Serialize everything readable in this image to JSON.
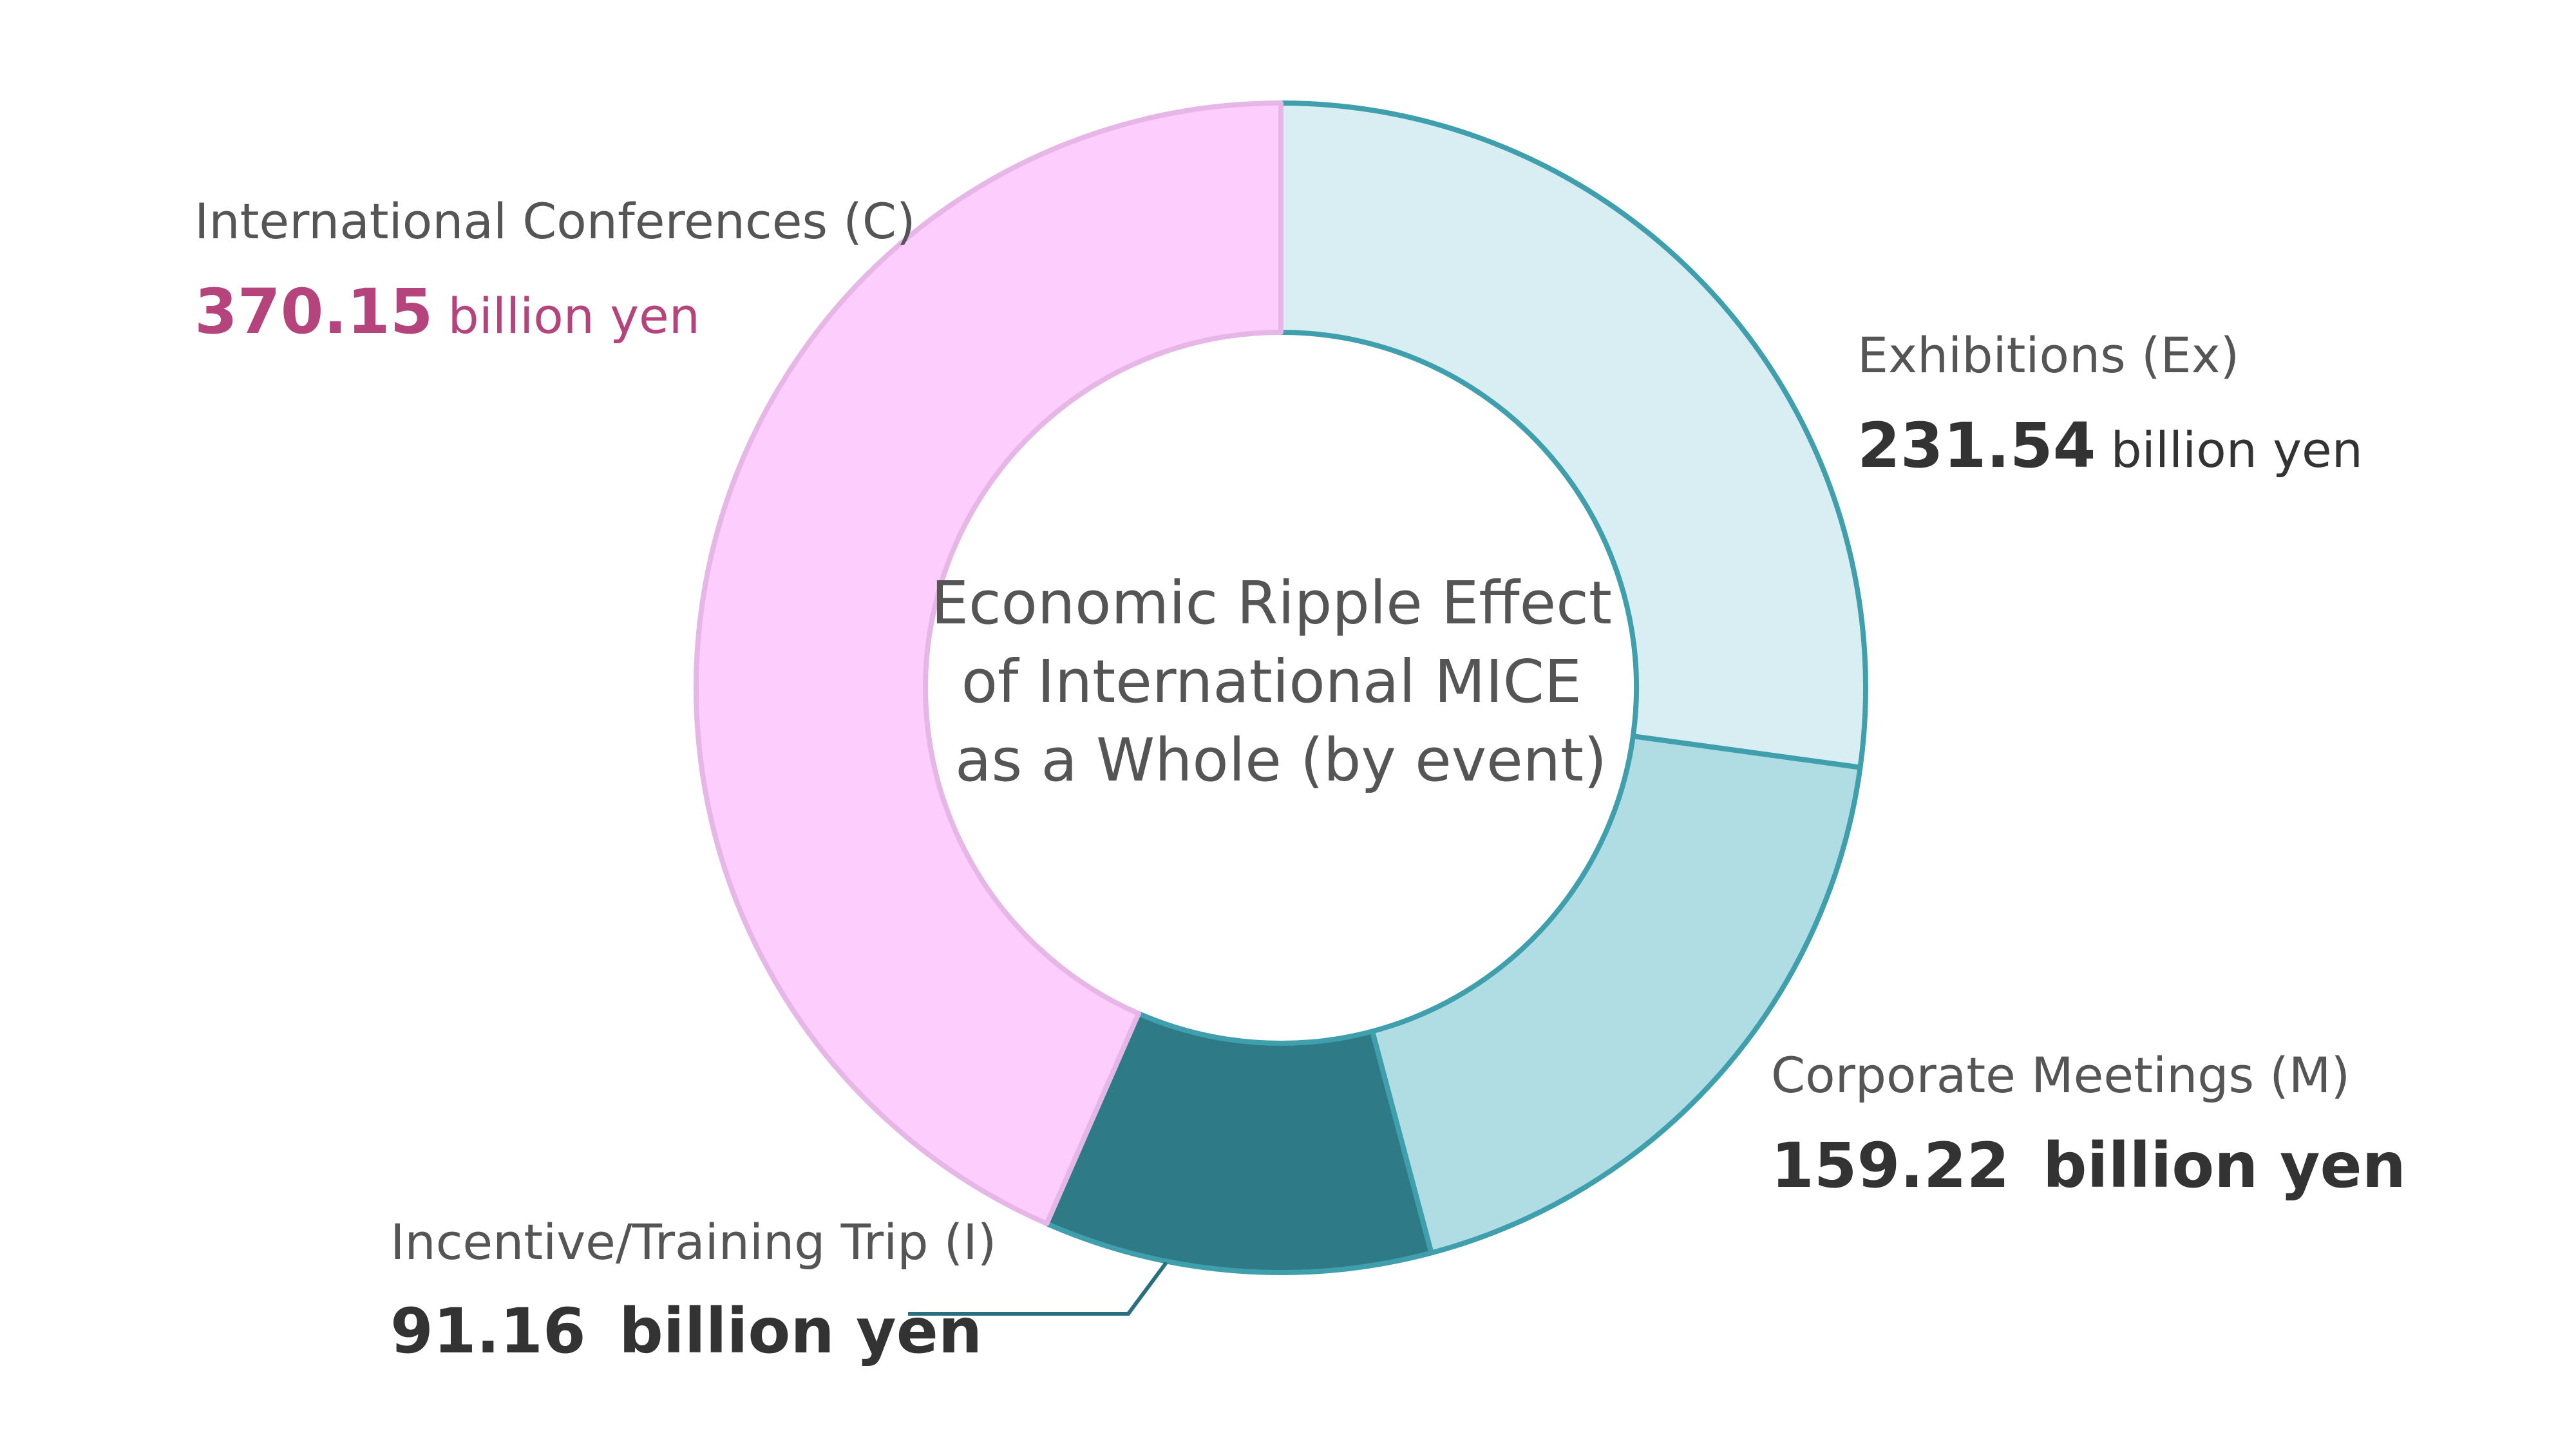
{
  "chart_data": {
    "type": "pie",
    "variant": "donut",
    "title_lines": [
      "Economic Ripple Effect",
      "of International MICE",
      "as a Whole (by event)"
    ],
    "unit": "billion yen",
    "slices": [
      {
        "name": "Exhibitions (Ex)",
        "value": 231.54,
        "value_text": "231.54",
        "unit_text": "billion yen",
        "fill": "#d8eef2",
        "stroke": "#3f9fad",
        "value_color": "#333333"
      },
      {
        "name": "Corporate Meetings (M)",
        "value": 159.22,
        "value_text": "159.22",
        "unit_text": "billion yen",
        "fill": "#b0dce3",
        "stroke": "#3f9fad",
        "value_color": "#333333"
      },
      {
        "name": "Incentive/Training Trip (I)",
        "value": 91.16,
        "value_text": "91.16",
        "unit_text": "billion yen",
        "fill": "#2e7a87",
        "stroke": "#3f9fad",
        "value_color": "#333333"
      },
      {
        "name": "International Conferences (C)",
        "value": 370.15,
        "value_text": "370.15",
        "unit_text": "billion yen",
        "fill": "#fdcdfd",
        "stroke": "#e6b7e6",
        "value_color": "#b5447c"
      }
    ],
    "label_color": "#555555",
    "title_color": "#555555",
    "leader_line_color": "#2a6f7d"
  }
}
